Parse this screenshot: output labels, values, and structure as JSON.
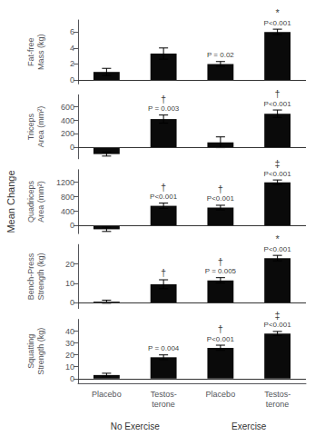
{
  "chart_data": {
    "type": "bar",
    "ylabel": "Mean Change",
    "categories": [
      "Placebo",
      "Testos-\nterone",
      "Placebo",
      "Testos-\nterone"
    ],
    "group_labels": [
      "No Exercise",
      "Exercise"
    ],
    "color": "#0a0a0a",
    "grid": false,
    "panels": [
      {
        "ylabel": "Fat-free\nMass (kg)",
        "ylim": [
          -0.5,
          7.5
        ],
        "yticks": [
          0,
          2,
          4,
          6
        ],
        "values": [
          1.0,
          3.3,
          2.0,
          6.0
        ],
        "errors": [
          0.45,
          0.7,
          0.3,
          0.35
        ],
        "annotations": [
          {
            "bar": 2,
            "text": "P = 0.02"
          },
          {
            "bar": 3,
            "symbol": "*",
            "text": "P<0.001"
          }
        ]
      },
      {
        "ylabel": "Triceps\nArea (mm²)",
        "ylim": [
          -170,
          780
        ],
        "yticks": [
          0,
          200,
          400,
          600
        ],
        "values": [
          -100,
          420,
          75,
          500
        ],
        "errors": [
          30,
          60,
          80,
          55
        ],
        "annotations": [
          {
            "bar": 1,
            "symbol": "†",
            "text": "P = 0.003"
          },
          {
            "bar": 3,
            "symbol": "†",
            "text": "P<0.001"
          }
        ]
      },
      {
        "ylabel": "Quadriceps\nArea (mm²)",
        "ylim": [
          -220,
          1550
        ],
        "yticks": [
          0,
          400,
          800,
          1200
        ],
        "values": [
          -100,
          550,
          500,
          1200
        ],
        "errors": [
          60,
          75,
          65,
          65
        ],
        "annotations": [
          {
            "bar": 1,
            "symbol": "†",
            "text": "P<0.001"
          },
          {
            "bar": 2,
            "symbol": "†",
            "text": "P<0.001"
          },
          {
            "bar": 3,
            "symbol": "‡",
            "text": "P<0.001"
          }
        ]
      },
      {
        "ylabel": "Bench-Press\nStrength (kg)",
        "ylim": [
          -3,
          30
        ],
        "yticks": [
          0,
          10,
          20
        ],
        "values": [
          0.5,
          9.5,
          11.5,
          23.0
        ],
        "errors": [
          0.8,
          2.3,
          1.4,
          1.4
        ],
        "annotations": [
          {
            "bar": 1,
            "symbol": "†"
          },
          {
            "bar": 2,
            "symbol": "†",
            "text": "P = 0.005"
          },
          {
            "bar": 3,
            "symbol": "*",
            "text": "P<0.001"
          }
        ]
      },
      {
        "ylabel": "Squatting\nStrength (kg)",
        "ylim": [
          -4,
          50
        ],
        "yticks": [
          0,
          10,
          20,
          30,
          40
        ],
        "values": [
          3.0,
          18.0,
          26.0,
          38.0
        ],
        "errors": [
          1.5,
          2.0,
          2.2,
          1.8
        ],
        "annotations": [
          {
            "bar": 1,
            "text": "P = 0.004"
          },
          {
            "bar": 2,
            "symbol": "†",
            "text": "P<0.001"
          },
          {
            "bar": 3,
            "symbol": "‡",
            "text": "P<0.001"
          }
        ]
      }
    ]
  }
}
